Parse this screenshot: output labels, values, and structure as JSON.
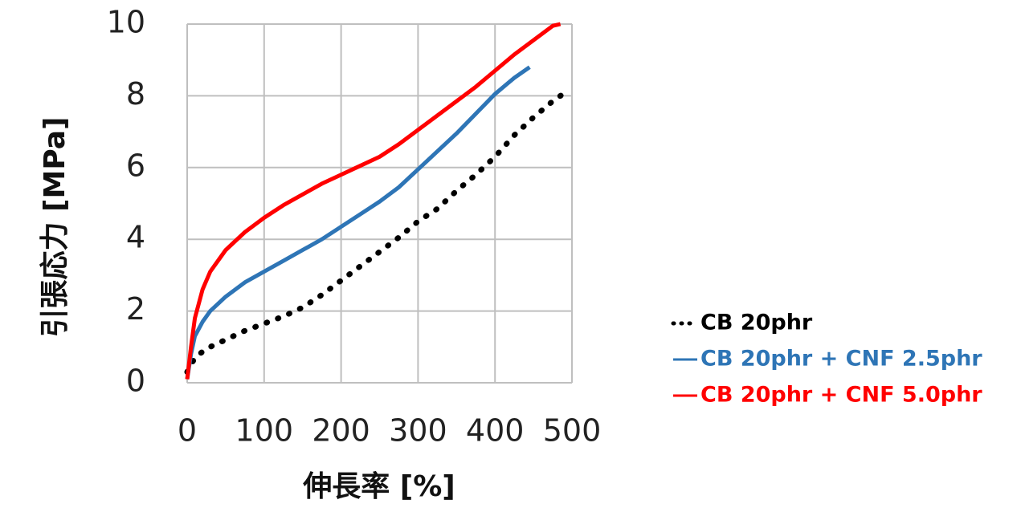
{
  "chart_data": {
    "type": "line",
    "x_label": "伸長率 [%]",
    "y_label": "引張応力 [MPa]",
    "xlim": [
      0,
      500
    ],
    "xticks": [
      0,
      100,
      200,
      300,
      400,
      500
    ],
    "ylim": [
      0,
      10
    ],
    "yticks": [
      0,
      2,
      4,
      6,
      8,
      10
    ],
    "grid": true,
    "legend": "right",
    "series": [
      {
        "name": "CB 20phr",
        "color": "#000000",
        "dash": "dotted",
        "x": [
          0,
          10,
          25,
          50,
          75,
          100,
          125,
          150,
          175,
          200,
          225,
          250,
          275,
          300,
          325,
          350,
          375,
          400,
          425,
          450,
          475,
          495
        ],
        "values": [
          0.3,
          0.7,
          0.95,
          1.2,
          1.45,
          1.65,
          1.85,
          2.1,
          2.45,
          2.85,
          3.25,
          3.65,
          4.05,
          4.5,
          4.85,
          5.35,
          5.8,
          6.3,
          6.9,
          7.4,
          7.85,
          8.15
        ]
      },
      {
        "name": "CB 20phr + CNF 2.5phr",
        "color": "#2e75b6",
        "dash": "solid",
        "x": [
          0,
          5,
          10,
          20,
          30,
          50,
          75,
          100,
          125,
          150,
          175,
          200,
          225,
          250,
          275,
          300,
          325,
          350,
          375,
          400,
          425,
          445
        ],
        "values": [
          0.1,
          0.8,
          1.3,
          1.7,
          2.0,
          2.4,
          2.8,
          3.1,
          3.4,
          3.7,
          4.0,
          4.35,
          4.7,
          5.05,
          5.45,
          5.95,
          6.45,
          6.95,
          7.5,
          8.05,
          8.5,
          8.8
        ]
      },
      {
        "name": "CB 20phr + CNF 5.0phr",
        "color": "#ff0000",
        "dash": "solid",
        "x": [
          0,
          5,
          10,
          20,
          30,
          50,
          75,
          100,
          125,
          150,
          175,
          200,
          225,
          250,
          275,
          300,
          325,
          350,
          375,
          400,
          425,
          450,
          475,
          485
        ],
        "values": [
          0.1,
          1.0,
          1.8,
          2.6,
          3.1,
          3.7,
          4.2,
          4.6,
          4.95,
          5.25,
          5.55,
          5.8,
          6.05,
          6.3,
          6.65,
          7.05,
          7.45,
          7.85,
          8.25,
          8.7,
          9.15,
          9.55,
          9.95,
          10.0
        ]
      }
    ]
  }
}
